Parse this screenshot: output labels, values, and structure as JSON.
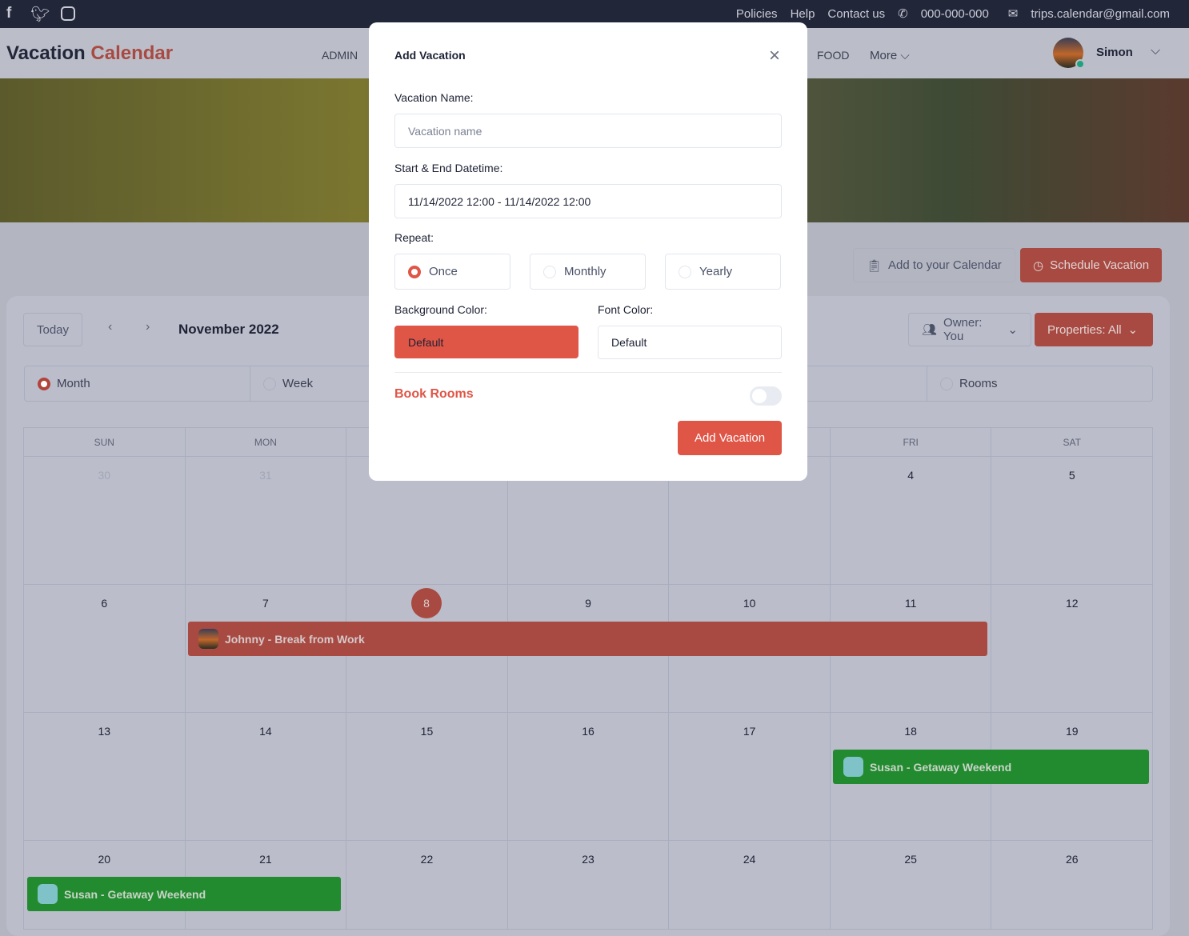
{
  "topbar": {
    "social": [
      "facebook-icon",
      "twitter-icon",
      "instagram-icon"
    ],
    "links": [
      "Policies",
      "Help",
      "Contact us"
    ],
    "phone": "000-000-000",
    "email": "trips.calendar@gmail.com"
  },
  "header": {
    "logo_a": "Vacation",
    "logo_b": "Calendar",
    "nav": [
      "ADMIN",
      "FOOD",
      "More"
    ],
    "user": "Simon"
  },
  "actions": {
    "add_calendar": "Add to your Calendar",
    "schedule": "Schedule Vacation"
  },
  "toolbar": {
    "today": "Today",
    "month_label": "November 2022",
    "owner": "Owner: You",
    "properties": "Properties: All"
  },
  "views": [
    {
      "label": "Month",
      "selected": true
    },
    {
      "label": "Week",
      "selected": false
    },
    {
      "label": "",
      "selected": false
    },
    {
      "label": "",
      "selected": false
    },
    {
      "label": "Rooms",
      "selected": false
    }
  ],
  "calendar": {
    "weekdays": [
      "SUN",
      "MON",
      "",
      "",
      "",
      "FRI",
      "SAT"
    ],
    "weeks": [
      [
        "30",
        "31",
        "",
        "",
        "",
        "4",
        "5"
      ],
      [
        "6",
        "7",
        "8",
        "9",
        "10",
        "11",
        "12"
      ],
      [
        "13",
        "14",
        "15",
        "16",
        "17",
        "18",
        "19"
      ],
      [
        "20",
        "21",
        "22",
        "23",
        "24",
        "25",
        "26"
      ]
    ],
    "today": "8",
    "events": [
      {
        "title": "Johnny - Break from Work",
        "color": "#a84a42"
      },
      {
        "title": "Susan - Getaway Weekend",
        "color": "#238b2f"
      },
      {
        "title": "Susan - Getaway Weekend",
        "color": "#238b2f"
      }
    ]
  },
  "modal": {
    "title": "Add Vacation",
    "name_label": "Vacation Name:",
    "name_placeholder": "Vacation name",
    "dt_label": "Start & End Datetime:",
    "dt_value": "11/14/2022 12:00 - 11/14/2022 12:00",
    "repeat_label": "Repeat:",
    "repeat": [
      {
        "label": "Once",
        "selected": true
      },
      {
        "label": "Monthly",
        "selected": false
      },
      {
        "label": "Yearly",
        "selected": false
      }
    ],
    "bg_label": "Background Color:",
    "bg_value": "Default",
    "bg_color": "#df5546",
    "font_label": "Font Color:",
    "font_value": "Default",
    "book_rooms": "Book Rooms",
    "book_rooms_on": false,
    "submit": "Add Vacation"
  }
}
